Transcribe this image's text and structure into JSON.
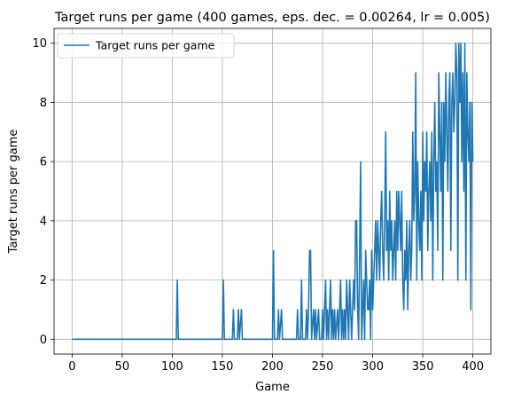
{
  "chart_data": {
    "type": "line",
    "title": "Target runs per game (400 games, eps. dec. = 0.00264, lr = 0.005)",
    "xlabel": "Game",
    "ylabel": "Target runs per game",
    "xlim": [
      -18,
      418
    ],
    "ylim": [
      -0.5,
      10.5
    ],
    "xticks": [
      0,
      50,
      100,
      150,
      200,
      250,
      300,
      350,
      400
    ],
    "yticks": [
      0,
      2,
      4,
      6,
      8,
      10
    ],
    "grid": true,
    "legend_position": "top-left",
    "series": [
      {
        "name": "Target runs per game",
        "color": "#1f77b4",
        "points": [
          [
            0,
            0
          ],
          [
            104,
            0
          ],
          [
            105,
            2
          ],
          [
            106,
            0
          ],
          [
            150,
            0
          ],
          [
            151,
            2
          ],
          [
            152,
            0
          ],
          [
            160,
            0
          ],
          [
            161,
            1
          ],
          [
            162,
            0
          ],
          [
            165,
            0
          ],
          [
            166,
            1
          ],
          [
            167,
            0
          ],
          [
            169,
            1
          ],
          [
            170,
            0
          ],
          [
            200,
            0
          ],
          [
            201,
            3
          ],
          [
            202,
            0
          ],
          [
            205,
            0
          ],
          [
            206,
            1
          ],
          [
            207,
            0
          ],
          [
            209,
            1
          ],
          [
            210,
            0
          ],
          [
            224,
            0
          ],
          [
            225,
            1
          ],
          [
            226,
            0
          ],
          [
            228,
            0
          ],
          [
            229,
            2
          ],
          [
            230,
            0
          ],
          [
            233,
            0
          ],
          [
            234,
            1
          ],
          [
            235,
            0
          ],
          [
            236,
            1
          ],
          [
            237,
            3
          ],
          [
            238,
            3
          ],
          [
            239,
            0
          ],
          [
            241,
            1
          ],
          [
            242,
            0
          ],
          [
            243,
            1
          ],
          [
            244,
            0
          ],
          [
            246,
            1
          ],
          [
            247,
            0
          ],
          [
            249,
            0
          ],
          [
            250,
            1
          ],
          [
            251,
            0
          ],
          [
            253,
            2
          ],
          [
            254,
            0
          ],
          [
            255,
            1
          ],
          [
            256,
            0
          ],
          [
            257,
            1
          ],
          [
            258,
            2
          ],
          [
            259,
            0
          ],
          [
            260,
            1
          ],
          [
            261,
            0
          ],
          [
            262,
            1
          ],
          [
            263,
            0
          ],
          [
            265,
            1
          ],
          [
            266,
            0
          ],
          [
            267,
            1
          ],
          [
            268,
            2
          ],
          [
            269,
            0
          ],
          [
            270,
            1
          ],
          [
            271,
            0
          ],
          [
            272,
            1
          ],
          [
            273,
            0
          ],
          [
            274,
            2
          ],
          [
            275,
            1
          ],
          [
            276,
            0
          ],
          [
            277,
            2
          ],
          [
            278,
            1
          ],
          [
            279,
            0
          ],
          [
            280,
            1
          ],
          [
            281,
            2
          ],
          [
            282,
            1
          ],
          [
            283,
            4
          ],
          [
            284,
            4
          ],
          [
            285,
            1
          ],
          [
            286,
            0
          ],
          [
            287,
            3
          ],
          [
            288,
            6
          ],
          [
            289,
            0
          ],
          [
            290,
            1
          ],
          [
            291,
            2
          ],
          [
            292,
            0
          ],
          [
            293,
            3
          ],
          [
            294,
            2
          ],
          [
            295,
            1
          ],
          [
            296,
            1
          ],
          [
            297,
            2
          ],
          [
            298,
            0
          ],
          [
            299,
            3
          ],
          [
            300,
            1
          ],
          [
            301,
            2
          ],
          [
            302,
            3
          ],
          [
            303,
            4
          ],
          [
            304,
            2
          ],
          [
            305,
            4
          ],
          [
            306,
            3
          ],
          [
            307,
            2
          ],
          [
            308,
            4
          ],
          [
            309,
            5
          ],
          [
            310,
            3
          ],
          [
            311,
            2
          ],
          [
            312,
            4
          ],
          [
            313,
            7
          ],
          [
            314,
            3
          ],
          [
            315,
            4
          ],
          [
            316,
            2
          ],
          [
            317,
            5
          ],
          [
            318,
            3
          ],
          [
            319,
            4
          ],
          [
            320,
            2
          ],
          [
            321,
            3
          ],
          [
            322,
            4
          ],
          [
            323,
            2
          ],
          [
            324,
            5
          ],
          [
            325,
            3
          ],
          [
            326,
            5
          ],
          [
            327,
            4
          ],
          [
            328,
            3
          ],
          [
            329,
            5
          ],
          [
            330,
            2
          ],
          [
            331,
            1
          ],
          [
            332,
            3
          ],
          [
            333,
            2
          ],
          [
            334,
            4
          ],
          [
            335,
            1
          ],
          [
            336,
            3
          ],
          [
            337,
            4
          ],
          [
            338,
            2
          ],
          [
            339,
            3
          ],
          [
            340,
            7
          ],
          [
            341,
            4
          ],
          [
            342,
            5
          ],
          [
            343,
            9
          ],
          [
            344,
            2
          ],
          [
            345,
            6
          ],
          [
            346,
            4
          ],
          [
            347,
            3
          ],
          [
            348,
            5
          ],
          [
            349,
            2
          ],
          [
            350,
            7
          ],
          [
            351,
            4
          ],
          [
            352,
            6
          ],
          [
            353,
            5
          ],
          [
            354,
            7
          ],
          [
            355,
            3
          ],
          [
            356,
            5
          ],
          [
            357,
            6
          ],
          [
            358,
            4
          ],
          [
            359,
            7
          ],
          [
            360,
            2
          ],
          [
            361,
            6
          ],
          [
            362,
            8
          ],
          [
            363,
            5
          ],
          [
            364,
            6
          ],
          [
            365,
            3
          ],
          [
            366,
            9
          ],
          [
            367,
            7
          ],
          [
            368,
            5
          ],
          [
            369,
            8
          ],
          [
            370,
            2
          ],
          [
            371,
            8
          ],
          [
            372,
            6
          ],
          [
            373,
            9
          ],
          [
            374,
            7
          ],
          [
            375,
            5
          ],
          [
            376,
            8
          ],
          [
            377,
            9
          ],
          [
            378,
            3
          ],
          [
            379,
            8
          ],
          [
            380,
            9
          ],
          [
            381,
            7
          ],
          [
            382,
            8
          ],
          [
            383,
            10
          ],
          [
            384,
            9
          ],
          [
            385,
            2
          ],
          [
            386,
            10
          ],
          [
            387,
            8
          ],
          [
            388,
            10
          ],
          [
            389,
            6
          ],
          [
            390,
            9
          ],
          [
            391,
            5
          ],
          [
            392,
            10
          ],
          [
            393,
            2
          ],
          [
            394,
            9
          ],
          [
            395,
            7
          ],
          [
            396,
            6
          ],
          [
            397,
            8
          ],
          [
            398,
            1
          ],
          [
            399,
            8
          ],
          [
            400,
            6
          ]
        ]
      }
    ]
  }
}
